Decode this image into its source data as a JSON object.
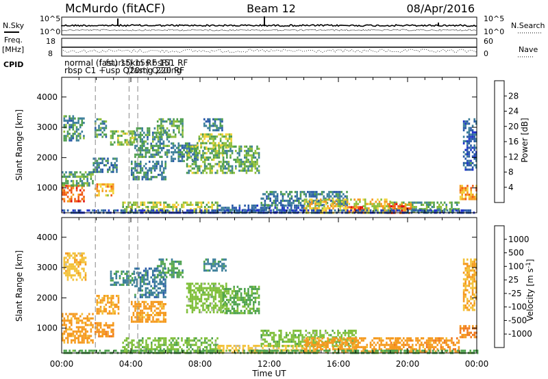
{
  "header": {
    "station": "McMurdo (fitACF)",
    "beam": "Beam 12",
    "date": "08/Apr/2016"
  },
  "left_labels": {
    "nsky": "N.Sky",
    "freq": "Freq.",
    "freq_unit": "[MHz]",
    "cpid": "CPID"
  },
  "right_labels": {
    "nsearch": "N.Search",
    "nave": "Nave"
  },
  "tick_labels": {
    "noise_top": "10^5",
    "noise_bottom": "10^0",
    "freq_top": "18",
    "freq_bottom": "8",
    "nave_top": "60",
    "nave_bottom": "0"
  },
  "cpid_text": {
    "row1": "normal (fast) 15km RF 151 RF",
    "row1_overlap": "l_fsurst) 15s bsRT",
    "row2": "rbsp C1 +usp Q20mg 220 RF",
    "row2_overlap": "(fast) Q20ing"
  },
  "colors": {
    "power": [
      "#2233cc",
      "#2a5aa8",
      "#3d7f9a",
      "#4f9e4f",
      "#8fbf3a",
      "#f2d23a",
      "#f59a1f",
      "#ef5a14",
      "#e01010"
    ],
    "velocity": [
      "#e01010",
      "#ef4818",
      "#f07a20",
      "#f59a1f",
      "#f3c23a",
      "#bbbbbb",
      "#7fbf3a",
      "#4fa34f",
      "#3d7f9a",
      "#2a5aa8",
      "#2233cc"
    ]
  },
  "chart_data": [
    {
      "type": "heatmap",
      "title": "Power",
      "xlabel": "Time UT",
      "ylabel": "Slant Range [km]",
      "colorbar_label": "Power [dB]",
      "colorbar_ticks": [
        "4",
        "8",
        "12",
        "16",
        "20",
        "24",
        "28"
      ],
      "x_ticks": [
        "00:00",
        "04:00",
        "08:00",
        "12:00",
        "16:00",
        "20:00",
        "00:00"
      ],
      "y_ticks": [
        "1000",
        "2000",
        "3000",
        "4000"
      ],
      "xlim_hours": [
        0,
        24
      ],
      "ylim_km": [
        180,
        4650
      ],
      "regions": [
        {
          "t0": 0.0,
          "t1": 1.3,
          "r0": 550,
          "r1": 1100,
          "power": 26
        },
        {
          "t0": 0.0,
          "t1": 1.8,
          "r0": 1100,
          "r1": 1550,
          "power": 14
        },
        {
          "t0": 0.1,
          "t1": 1.3,
          "r0": 2600,
          "r1": 3400,
          "power": 12
        },
        {
          "t0": 1.9,
          "t1": 3.0,
          "r0": 750,
          "r1": 1150,
          "power": 22
        },
        {
          "t0": 1.8,
          "t1": 3.2,
          "r0": 1500,
          "r1": 2000,
          "power": 10
        },
        {
          "t0": 1.9,
          "t1": 2.6,
          "r0": 2700,
          "r1": 3300,
          "power": 12
        },
        {
          "t0": 2.8,
          "t1": 4.2,
          "r0": 2400,
          "r1": 2900,
          "power": 16
        },
        {
          "t0": 4.2,
          "t1": 6.2,
          "r0": 2000,
          "r1": 3000,
          "power": 12
        },
        {
          "t0": 4.0,
          "t1": 6.0,
          "r0": 1300,
          "r1": 1900,
          "power": 10
        },
        {
          "t0": 5.5,
          "t1": 7.0,
          "r0": 2700,
          "r1": 3300,
          "power": 14
        },
        {
          "t0": 6.3,
          "t1": 7.8,
          "r0": 1900,
          "r1": 2500,
          "power": 10
        },
        {
          "t0": 7.2,
          "t1": 9.3,
          "r0": 1500,
          "r1": 2400,
          "power": 15
        },
        {
          "t0": 7.8,
          "t1": 9.8,
          "r0": 2300,
          "r1": 2800,
          "power": 17
        },
        {
          "t0": 8.2,
          "t1": 9.3,
          "r0": 2900,
          "r1": 3300,
          "power": 10
        },
        {
          "t0": 9.3,
          "t1": 11.4,
          "r0": 1500,
          "r1": 2400,
          "power": 14
        },
        {
          "t0": 3.5,
          "t1": 9.0,
          "r0": 200,
          "r1": 550,
          "power": 18
        },
        {
          "t0": 9.0,
          "t1": 14.0,
          "r0": 200,
          "r1": 450,
          "power": 8
        },
        {
          "t0": 11.5,
          "t1": 16.5,
          "r0": 400,
          "r1": 900,
          "power": 10
        },
        {
          "t0": 14.0,
          "t1": 19.0,
          "r0": 200,
          "r1": 650,
          "power": 20
        },
        {
          "t0": 16.5,
          "t1": 17.5,
          "r0": 200,
          "r1": 400,
          "power": 27
        },
        {
          "t0": 19.0,
          "t1": 23.0,
          "r0": 200,
          "r1": 550,
          "power": 14
        },
        {
          "t0": 18.8,
          "t1": 20.2,
          "r0": 200,
          "r1": 500,
          "power": 26
        },
        {
          "t0": 23.0,
          "t1": 24.0,
          "r0": 650,
          "r1": 1100,
          "power": 24
        },
        {
          "t0": 23.2,
          "t1": 24.0,
          "r0": 1600,
          "r1": 3300,
          "power": 8
        },
        {
          "t0": 0.0,
          "t1": 24.0,
          "r0": 180,
          "r1": 290,
          "power": 6
        }
      ]
    },
    {
      "type": "heatmap",
      "title": "Velocity",
      "xlabel": "Time UT",
      "ylabel": "Slant Range [km]",
      "colorbar_label": "Velocity [m s^-1]",
      "colorbar_ticks": [
        "-1000",
        "-500",
        "-100",
        "-25",
        "25",
        "100",
        "500",
        "1000"
      ],
      "x_ticks": [
        "00:00",
        "04:00",
        "08:00",
        "12:00",
        "16:00",
        "20:00",
        "00:00"
      ],
      "y_ticks": [
        "1000",
        "2000",
        "3000",
        "4000"
      ],
      "xlim_hours": [
        0,
        24
      ],
      "ylim_km": [
        180,
        4650
      ],
      "regions": [
        {
          "t0": 0.0,
          "t1": 1.8,
          "r0": 500,
          "r1": 1500,
          "velocity": -150
        },
        {
          "t0": 0.1,
          "t1": 1.4,
          "r0": 2600,
          "r1": 3500,
          "velocity": -80
        },
        {
          "t0": 1.9,
          "t1": 3.0,
          "r0": 700,
          "r1": 1200,
          "velocity": -200
        },
        {
          "t0": 2.0,
          "t1": 3.3,
          "r0": 1500,
          "r1": 2100,
          "velocity": -120
        },
        {
          "t0": 2.8,
          "t1": 4.2,
          "r0": 2400,
          "r1": 2900,
          "velocity": 300
        },
        {
          "t0": 4.2,
          "t1": 6.0,
          "r0": 2000,
          "r1": 3000,
          "velocity": 400
        },
        {
          "t0": 4.0,
          "t1": 6.0,
          "r0": 1200,
          "r1": 1900,
          "velocity": -150
        },
        {
          "t0": 5.5,
          "t1": 7.0,
          "r0": 2700,
          "r1": 3300,
          "velocity": 200
        },
        {
          "t0": 7.2,
          "t1": 9.5,
          "r0": 1500,
          "r1": 2500,
          "velocity": 60
        },
        {
          "t0": 9.3,
          "t1": 11.4,
          "r0": 1500,
          "r1": 2400,
          "velocity": 120
        },
        {
          "t0": 8.2,
          "t1": 9.5,
          "r0": 2900,
          "r1": 3300,
          "velocity": 300
        },
        {
          "t0": 3.5,
          "t1": 9.0,
          "r0": 200,
          "r1": 700,
          "velocity": 80
        },
        {
          "t0": 9.0,
          "t1": 14.0,
          "r0": 200,
          "r1": 450,
          "velocity": -60
        },
        {
          "t0": 11.5,
          "t1": 17.0,
          "r0": 400,
          "r1": 950,
          "velocity": 70
        },
        {
          "t0": 14.0,
          "t1": 19.5,
          "r0": 200,
          "r1": 700,
          "velocity": -150
        },
        {
          "t0": 19.0,
          "t1": 23.0,
          "r0": 200,
          "r1": 700,
          "velocity": -200
        },
        {
          "t0": 23.0,
          "t1": 24.0,
          "r0": 700,
          "r1": 1100,
          "velocity": -300
        },
        {
          "t0": 23.2,
          "t1": 24.0,
          "r0": 1600,
          "r1": 3300,
          "velocity": -100
        },
        {
          "t0": 0.0,
          "t1": 24.0,
          "r0": 180,
          "r1": 290,
          "velocity": 150
        }
      ]
    }
  ],
  "dashed_marker_hours": [
    1.95,
    3.9,
    4.4
  ]
}
